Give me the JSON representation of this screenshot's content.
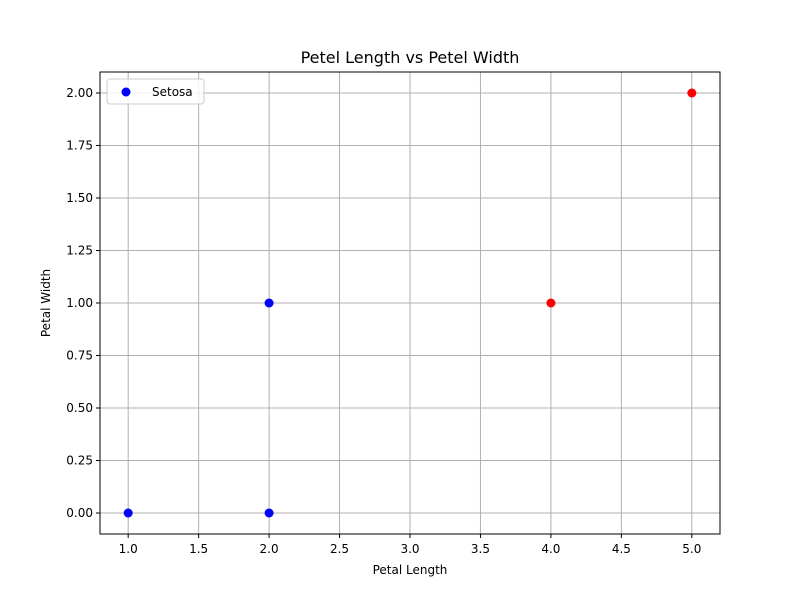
{
  "chart_data": {
    "type": "scatter",
    "title": "Petel Length vs Petel Width",
    "xlabel": "Petal Length",
    "ylabel": "Petal Width",
    "xlim": [
      0.8,
      5.2
    ],
    "ylim": [
      -0.1,
      2.1
    ],
    "xticks": [
      "1.0",
      "1.5",
      "2.0",
      "2.5",
      "3.0",
      "3.5",
      "4.0",
      "4.5",
      "5.0"
    ],
    "yticks": [
      "0.00",
      "0.25",
      "0.50",
      "0.75",
      "1.00",
      "1.25",
      "1.50",
      "1.75",
      "2.00"
    ],
    "grid": true,
    "legend_position": "top-left",
    "series": [
      {
        "name": "Setosa",
        "color": "#0000ff",
        "points": [
          {
            "x": 1.0,
            "y": 0.0
          },
          {
            "x": 2.0,
            "y": 0.0
          },
          {
            "x": 2.0,
            "y": 1.0
          }
        ]
      },
      {
        "color": "#ff0000",
        "points": [
          {
            "x": 4.0,
            "y": 1.0
          },
          {
            "x": 5.0,
            "y": 2.0
          }
        ]
      }
    ],
    "legend": [
      {
        "label": "Setosa",
        "color": "#0000ff"
      }
    ]
  }
}
